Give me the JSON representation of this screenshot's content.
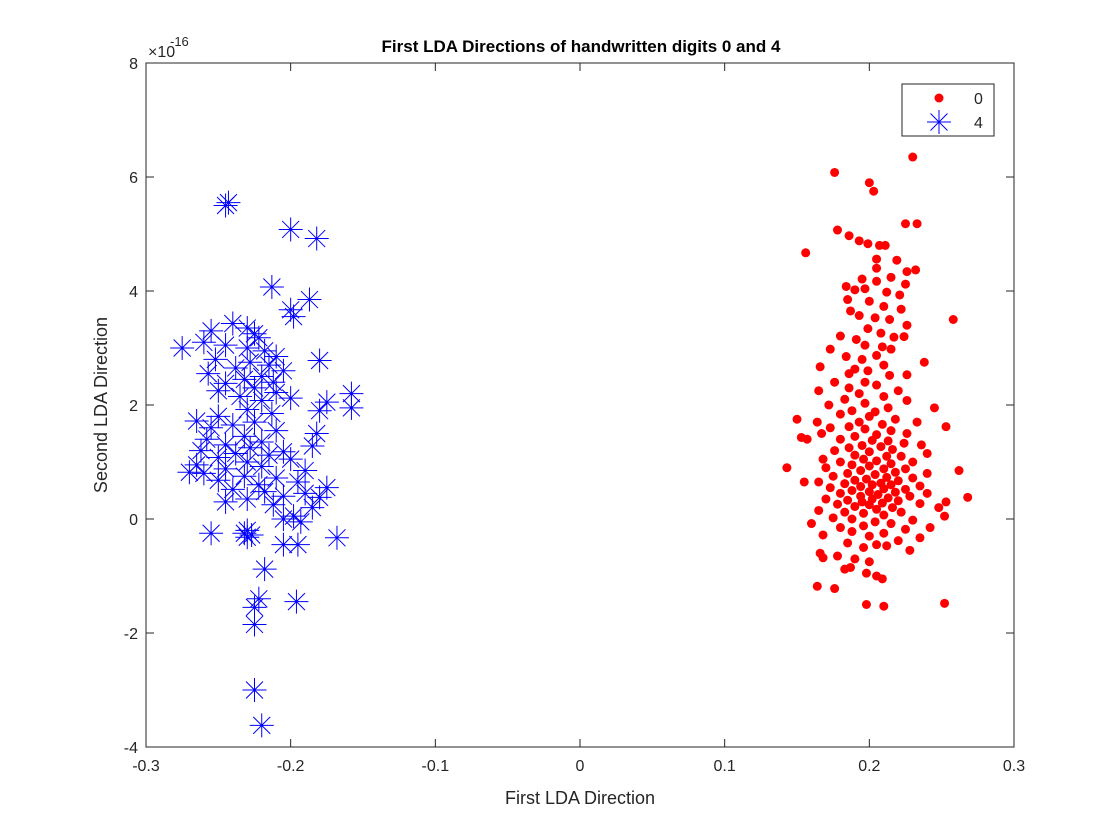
{
  "chart_data": {
    "type": "scatter",
    "title": "First LDA Directions of handwritten digits 0 and 4",
    "xlabel": "First LDA Direction",
    "ylabel": "Second LDA Direction",
    "xlim": [
      -0.3,
      0.3
    ],
    "ylim": [
      -4,
      8
    ],
    "xticks": [
      "-0.3",
      "-0.2",
      "-0.1",
      "0",
      "0.1",
      "0.2",
      "0.3"
    ],
    "yticks": [
      "-4",
      "-2",
      "0",
      "2",
      "4",
      "6",
      "8"
    ],
    "y_exponent_label": "×10",
    "y_exponent_power": "-16",
    "y_multiplier": "1e-16",
    "legend_position": "top-right",
    "grid": false,
    "series": [
      {
        "name": "0",
        "marker": "filled-circle",
        "color": "#ff0000",
        "points": [
          [
            0.23,
            6.35
          ],
          [
            0.176,
            6.08
          ],
          [
            0.2,
            5.9
          ],
          [
            0.203,
            5.75
          ],
          [
            0.225,
            5.18
          ],
          [
            0.233,
            5.18
          ],
          [
            0.178,
            5.07
          ],
          [
            0.186,
            4.97
          ],
          [
            0.193,
            4.88
          ],
          [
            0.199,
            4.83
          ],
          [
            0.207,
            4.8
          ],
          [
            0.211,
            4.8
          ],
          [
            0.219,
            4.54
          ],
          [
            0.226,
            4.34
          ],
          [
            0.232,
            4.37
          ],
          [
            0.205,
            4.4
          ],
          [
            0.205,
            4.56
          ],
          [
            0.195,
            4.21
          ],
          [
            0.205,
            4.17
          ],
          [
            0.215,
            4.24
          ],
          [
            0.225,
            4.12
          ],
          [
            0.156,
            4.67
          ],
          [
            0.184,
            4.08
          ],
          [
            0.19,
            4.02
          ],
          [
            0.197,
            4.04
          ],
          [
            0.212,
            3.98
          ],
          [
            0.221,
            3.93
          ],
          [
            0.185,
            3.85
          ],
          [
            0.2,
            3.82
          ],
          [
            0.21,
            3.73
          ],
          [
            0.222,
            3.68
          ],
          [
            0.187,
            3.65
          ],
          [
            0.193,
            3.57
          ],
          [
            0.204,
            3.53
          ],
          [
            0.214,
            3.5
          ],
          [
            0.226,
            3.4
          ],
          [
            0.258,
            3.5
          ],
          [
            0.199,
            3.34
          ],
          [
            0.208,
            3.26
          ],
          [
            0.217,
            3.19
          ],
          [
            0.18,
            3.21
          ],
          [
            0.191,
            3.15
          ],
          [
            0.224,
            3.2
          ],
          [
            0.197,
            3.05
          ],
          [
            0.209,
            3.02
          ],
          [
            0.215,
            2.98
          ],
          [
            0.173,
            2.98
          ],
          [
            0.205,
            2.87
          ],
          [
            0.184,
            2.85
          ],
          [
            0.195,
            2.8
          ],
          [
            0.21,
            2.7
          ],
          [
            0.238,
            2.75
          ],
          [
            0.166,
            2.67
          ],
          [
            0.19,
            2.63
          ],
          [
            0.199,
            2.6
          ],
          [
            0.186,
            2.55
          ],
          [
            0.214,
            2.52
          ],
          [
            0.226,
            2.53
          ],
          [
            0.176,
            2.4
          ],
          [
            0.197,
            2.4
          ],
          [
            0.205,
            2.35
          ],
          [
            0.186,
            2.3
          ],
          [
            0.165,
            2.25
          ],
          [
            0.22,
            2.25
          ],
          [
            0.193,
            2.2
          ],
          [
            0.21,
            2.15
          ],
          [
            0.183,
            2.1
          ],
          [
            0.226,
            2.08
          ],
          [
            0.197,
            2.03
          ],
          [
            0.172,
            2.0
          ],
          [
            0.213,
            1.95
          ],
          [
            0.245,
            1.95
          ],
          [
            0.188,
            1.9
          ],
          [
            0.204,
            1.88
          ],
          [
            0.18,
            1.84
          ],
          [
            0.2,
            1.8
          ],
          [
            0.15,
            1.75
          ],
          [
            0.164,
            1.7
          ],
          [
            0.218,
            1.75
          ],
          [
            0.193,
            1.7
          ],
          [
            0.233,
            1.7
          ],
          [
            0.209,
            1.66
          ],
          [
            0.186,
            1.62
          ],
          [
            0.173,
            1.6
          ],
          [
            0.253,
            1.62
          ],
          [
            0.197,
            1.58
          ],
          [
            0.215,
            1.55
          ],
          [
            0.226,
            1.5
          ],
          [
            0.205,
            1.48
          ],
          [
            0.167,
            1.5
          ],
          [
            0.19,
            1.45
          ],
          [
            0.153,
            1.43
          ],
          [
            0.157,
            1.4
          ],
          [
            0.18,
            1.4
          ],
          [
            0.202,
            1.38
          ],
          [
            0.213,
            1.37
          ],
          [
            0.224,
            1.33
          ],
          [
            0.236,
            1.3
          ],
          [
            0.195,
            1.29
          ],
          [
            0.208,
            1.27
          ],
          [
            0.186,
            1.25
          ],
          [
            0.216,
            1.22
          ],
          [
            0.176,
            1.2
          ],
          [
            0.2,
            1.18
          ],
          [
            0.24,
            1.15
          ],
          [
            0.19,
            1.12
          ],
          [
            0.212,
            1.1
          ],
          [
            0.222,
            1.1
          ],
          [
            0.168,
            1.05
          ],
          [
            0.196,
            1.05
          ],
          [
            0.205,
            1.02
          ],
          [
            0.18,
            1.0
          ],
          [
            0.23,
            1.0
          ],
          [
            0.215,
            0.97
          ],
          [
            0.188,
            0.95
          ],
          [
            0.2,
            0.93
          ],
          [
            0.17,
            0.9
          ],
          [
            0.143,
            0.9
          ],
          [
            0.21,
            0.88
          ],
          [
            0.225,
            0.88
          ],
          [
            0.262,
            0.85
          ],
          [
            0.194,
            0.85
          ],
          [
            0.218,
            0.82
          ],
          [
            0.24,
            0.8
          ],
          [
            0.185,
            0.8
          ],
          [
            0.204,
            0.78
          ],
          [
            0.175,
            0.75
          ],
          [
            0.212,
            0.73
          ],
          [
            0.23,
            0.72
          ],
          [
            0.198,
            0.7
          ],
          [
            0.19,
            0.68
          ],
          [
            0.22,
            0.67
          ],
          [
            0.165,
            0.65
          ],
          [
            0.208,
            0.63
          ],
          [
            0.155,
            0.65
          ],
          [
            0.183,
            0.62
          ],
          [
            0.202,
            0.6
          ],
          [
            0.215,
            0.6
          ],
          [
            0.235,
            0.58
          ],
          [
            0.194,
            0.57
          ],
          [
            0.173,
            0.55
          ],
          [
            0.21,
            0.53
          ],
          [
            0.225,
            0.52
          ],
          [
            0.188,
            0.5
          ],
          [
            0.2,
            0.48
          ],
          [
            0.218,
            0.47
          ],
          [
            0.24,
            0.45
          ],
          [
            0.18,
            0.45
          ],
          [
            0.206,
            0.43
          ],
          [
            0.194,
            0.4
          ],
          [
            0.228,
            0.4
          ],
          [
            0.268,
            0.38
          ],
          [
            0.213,
            0.37
          ],
          [
            0.17,
            0.35
          ],
          [
            0.202,
            0.35
          ],
          [
            0.185,
            0.33
          ],
          [
            0.22,
            0.32
          ],
          [
            0.253,
            0.3
          ],
          [
            0.195,
            0.3
          ],
          [
            0.209,
            0.28
          ],
          [
            0.235,
            0.27
          ],
          [
            0.178,
            0.26
          ],
          [
            0.2,
            0.25
          ],
          [
            0.19,
            0.22
          ],
          [
            0.216,
            0.2
          ],
          [
            0.248,
            0.2
          ],
          [
            0.205,
            0.17
          ],
          [
            0.165,
            0.15
          ],
          [
            0.183,
            0.12
          ],
          [
            0.222,
            0.12
          ],
          [
            0.196,
            0.1
          ],
          [
            0.21,
            0.07
          ],
          [
            0.252,
            0.05
          ],
          [
            0.175,
            0.02
          ],
          [
            0.188,
            0.0
          ],
          [
            0.23,
            -0.02
          ],
          [
            0.204,
            -0.05
          ],
          [
            0.16,
            -0.08
          ],
          [
            0.215,
            -0.08
          ],
          [
            0.196,
            -0.12
          ],
          [
            0.18,
            -0.15
          ],
          [
            0.225,
            -0.18
          ],
          [
            0.242,
            -0.15
          ],
          [
            0.188,
            -0.22
          ],
          [
            0.21,
            -0.25
          ],
          [
            0.168,
            -0.28
          ],
          [
            0.2,
            -0.3
          ],
          [
            0.235,
            -0.33
          ],
          [
            0.22,
            -0.38
          ],
          [
            0.185,
            -0.42
          ],
          [
            0.205,
            -0.45
          ],
          [
            0.212,
            -0.47
          ],
          [
            0.196,
            -0.5
          ],
          [
            0.228,
            -0.55
          ],
          [
            0.166,
            -0.6
          ],
          [
            0.178,
            -0.65
          ],
          [
            0.168,
            -0.68
          ],
          [
            0.19,
            -0.7
          ],
          [
            0.2,
            -0.75
          ],
          [
            0.187,
            -0.85
          ],
          [
            0.183,
            -0.88
          ],
          [
            0.198,
            -0.95
          ],
          [
            0.205,
            -1.0
          ],
          [
            0.209,
            -1.05
          ],
          [
            0.164,
            -1.18
          ],
          [
            0.176,
            -1.22
          ],
          [
            0.198,
            -1.5
          ],
          [
            0.21,
            -1.53
          ],
          [
            0.252,
            -1.48
          ]
        ]
      },
      {
        "name": "4",
        "marker": "asterisk",
        "color": "#0000ff",
        "points": [
          [
            -0.243,
            5.55
          ],
          [
            -0.245,
            5.5
          ],
          [
            -0.2,
            5.08
          ],
          [
            -0.182,
            4.92
          ],
          [
            -0.213,
            4.07
          ],
          [
            -0.187,
            3.85
          ],
          [
            -0.2,
            3.67
          ],
          [
            -0.198,
            3.55
          ],
          [
            -0.24,
            3.43
          ],
          [
            -0.255,
            3.3
          ],
          [
            -0.23,
            3.35
          ],
          [
            -0.225,
            3.25
          ],
          [
            -0.222,
            3.18
          ],
          [
            -0.26,
            3.1
          ],
          [
            -0.245,
            3.05
          ],
          [
            -0.23,
            3.0
          ],
          [
            -0.275,
            3.0
          ],
          [
            -0.218,
            2.95
          ],
          [
            -0.21,
            2.85
          ],
          [
            -0.252,
            2.8
          ],
          [
            -0.18,
            2.78
          ],
          [
            -0.228,
            2.75
          ],
          [
            -0.215,
            2.7
          ],
          [
            -0.238,
            2.65
          ],
          [
            -0.205,
            2.6
          ],
          [
            -0.257,
            2.55
          ],
          [
            -0.22,
            2.5
          ],
          [
            -0.232,
            2.45
          ],
          [
            -0.212,
            2.4
          ],
          [
            -0.245,
            2.38
          ],
          [
            -0.225,
            2.3
          ],
          [
            -0.25,
            2.25
          ],
          [
            -0.21,
            2.22
          ],
          [
            -0.158,
            2.2
          ],
          [
            -0.235,
            2.15
          ],
          [
            -0.2,
            2.12
          ],
          [
            -0.22,
            2.08
          ],
          [
            -0.175,
            2.05
          ],
          [
            -0.158,
            1.95
          ],
          [
            -0.23,
            1.92
          ],
          [
            -0.18,
            1.9
          ],
          [
            -0.213,
            1.85
          ],
          [
            -0.25,
            1.8
          ],
          [
            -0.265,
            1.72
          ],
          [
            -0.225,
            1.7
          ],
          [
            -0.24,
            1.65
          ],
          [
            -0.255,
            1.6
          ],
          [
            -0.21,
            1.55
          ],
          [
            -0.182,
            1.5
          ],
          [
            -0.232,
            1.45
          ],
          [
            -0.258,
            1.4
          ],
          [
            -0.22,
            1.35
          ],
          [
            -0.245,
            1.3
          ],
          [
            -0.185,
            1.28
          ],
          [
            -0.228,
            1.25
          ],
          [
            -0.262,
            1.2
          ],
          [
            -0.205,
            1.18
          ],
          [
            -0.238,
            1.15
          ],
          [
            -0.215,
            1.12
          ],
          [
            -0.25,
            1.08
          ],
          [
            -0.2,
            1.05
          ],
          [
            -0.23,
            1.0
          ],
          [
            -0.265,
            0.95
          ],
          [
            -0.22,
            0.92
          ],
          [
            -0.245,
            0.88
          ],
          [
            -0.19,
            0.85
          ],
          [
            -0.27,
            0.82
          ],
          [
            -0.26,
            0.8
          ],
          [
            -0.232,
            0.75
          ],
          [
            -0.21,
            0.72
          ],
          [
            -0.25,
            0.68
          ],
          [
            -0.195,
            0.65
          ],
          [
            -0.222,
            0.6
          ],
          [
            -0.175,
            0.55
          ],
          [
            -0.24,
            0.52
          ],
          [
            -0.218,
            0.48
          ],
          [
            -0.19,
            0.45
          ],
          [
            -0.205,
            0.4
          ],
          [
            -0.18,
            0.38
          ],
          [
            -0.23,
            0.35
          ],
          [
            -0.245,
            0.3
          ],
          [
            -0.212,
            0.25
          ],
          [
            -0.185,
            0.2
          ],
          [
            -0.198,
            0.05
          ],
          [
            -0.205,
            0.0
          ],
          [
            -0.193,
            -0.05
          ],
          [
            -0.23,
            -0.2
          ],
          [
            -0.255,
            -0.25
          ],
          [
            -0.232,
            -0.25
          ],
          [
            -0.227,
            -0.28
          ],
          [
            -0.23,
            -0.32
          ],
          [
            -0.168,
            -0.33
          ],
          [
            -0.205,
            -0.45
          ],
          [
            -0.195,
            -0.45
          ],
          [
            -0.218,
            -0.88
          ],
          [
            -0.222,
            -1.4
          ],
          [
            -0.196,
            -1.45
          ],
          [
            -0.225,
            -1.55
          ],
          [
            -0.225,
            -1.85
          ],
          [
            -0.225,
            -3.0
          ],
          [
            -0.22,
            -3.62
          ]
        ]
      }
    ]
  }
}
